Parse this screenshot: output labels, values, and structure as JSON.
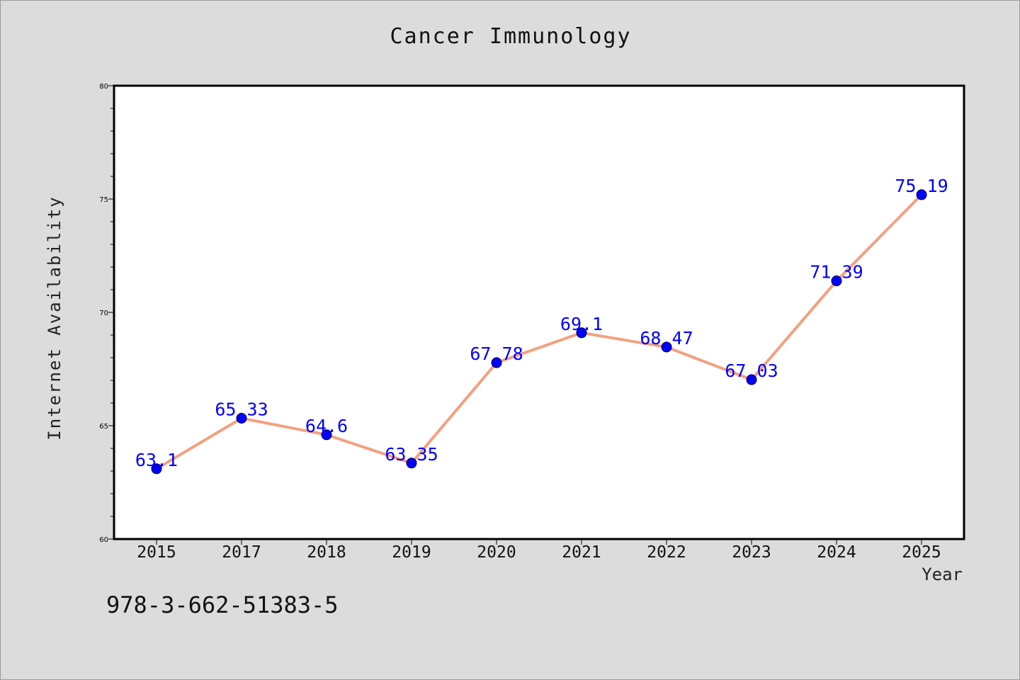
{
  "chart_data": {
    "type": "line",
    "title": "Cancer Immunology",
    "xlabel": "Year",
    "ylabel": "Internet Availability",
    "categories": [
      "2015",
      "2017",
      "2018",
      "2019",
      "2020",
      "2021",
      "2022",
      "2023",
      "2024",
      "2025"
    ],
    "series": [
      {
        "values": [
          63.1,
          65.33,
          64.6,
          63.35,
          67.78,
          69.1,
          68.47,
          67.03,
          71.39,
          75.19
        ],
        "labels": [
          "63.1",
          "65.33",
          "64.6",
          "63.35",
          "67.78",
          "69.1",
          "68.47",
          "67.03",
          "71.39",
          "75.19"
        ],
        "line_color": "#f4a07e",
        "marker_color": "#0000ff",
        "label_color": "#0000ff"
      }
    ],
    "ylim": [
      60,
      80
    ],
    "yticks": [
      "60",
      "65",
      "70",
      "75",
      "80"
    ],
    "grid": false,
    "legend": "none"
  },
  "footer": {
    "code": "978-3-662-51383-5"
  },
  "colors": {
    "background": "#dcdcdc",
    "plot_background": "#ffffff",
    "axis": "#000000"
  }
}
